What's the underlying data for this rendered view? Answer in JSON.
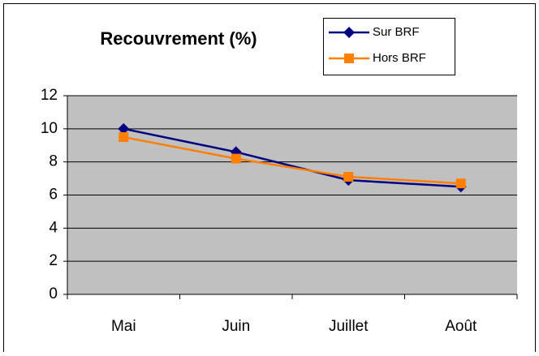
{
  "chart_data": {
    "type": "line",
    "title": "Recouvrement (%)",
    "categories": [
      "Mai",
      "Juin",
      "Juillet",
      "Août"
    ],
    "series": [
      {
        "name": "Sur BRF",
        "color": "#000080",
        "marker": "diamond",
        "values": [
          10,
          8.6,
          6.9,
          6.5
        ]
      },
      {
        "name": "Hors BRF",
        "color": "#ff7f00",
        "marker": "square",
        "values": [
          9.5,
          8.2,
          7.1,
          6.7
        ]
      }
    ],
    "ylim": [
      0,
      12
    ],
    "yticks": [
      0,
      2,
      4,
      6,
      8,
      10,
      12
    ],
    "grid": true,
    "legend": "top-right"
  }
}
